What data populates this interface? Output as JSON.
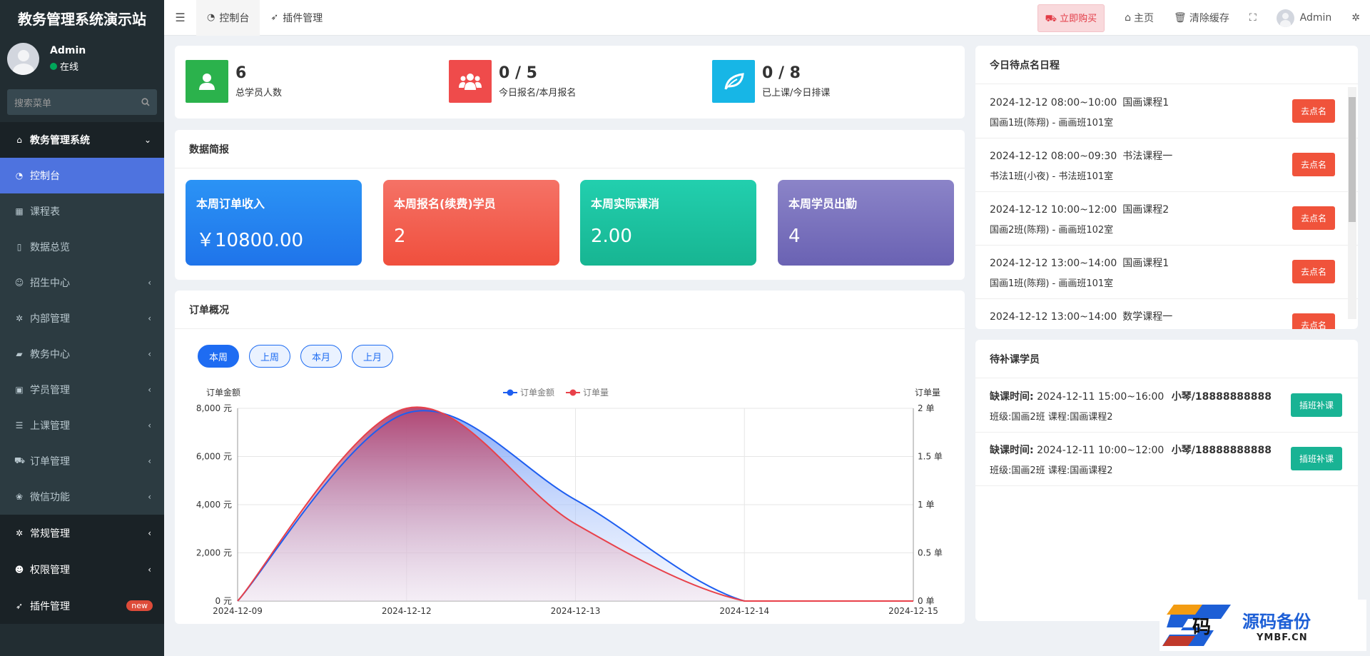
{
  "brand": {
    "title": "教务管理系统演示站"
  },
  "user": {
    "name": "Admin",
    "status": "在线"
  },
  "search": {
    "placeholder": "搜索菜单"
  },
  "sidebar": {
    "section_title": "教务管理系统",
    "items": [
      {
        "label": "控制台",
        "icon": "dashboard-icon"
      },
      {
        "label": "课程表",
        "icon": "calendar-icon"
      },
      {
        "label": "数据总览",
        "icon": "file-icon"
      },
      {
        "label": "招生中心",
        "icon": "user-icon"
      },
      {
        "label": "内部管理",
        "icon": "gear-icon"
      },
      {
        "label": "教务中心",
        "icon": "book-icon"
      },
      {
        "label": "学员管理",
        "icon": "idcard-icon"
      },
      {
        "label": "上课管理",
        "icon": "list-icon"
      },
      {
        "label": "订单管理",
        "icon": "cart-icon"
      },
      {
        "label": "微信功能",
        "icon": "wechat-icon"
      }
    ],
    "bottom": [
      {
        "label": "常规管理",
        "icon": "cogs-icon"
      },
      {
        "label": "权限管理",
        "icon": "group-icon"
      },
      {
        "label": "插件管理",
        "icon": "rocket-icon",
        "badge": "new"
      }
    ]
  },
  "navbar": {
    "tabs": [
      {
        "label": "控制台",
        "icon": "dashboard-icon"
      },
      {
        "label": "插件管理",
        "icon": "rocket-icon"
      }
    ],
    "buy": "立即购买",
    "home": "主页",
    "clear_cache": "清除缓存",
    "admin": "Admin"
  },
  "stats": [
    {
      "value": "6",
      "label": "总学员人数",
      "color": "#2bb24c",
      "icon": "user-icon"
    },
    {
      "value": "0 / 5",
      "label": "今日报名/本月报名",
      "color": "#ef4b4b",
      "icon": "users-icon"
    },
    {
      "value": "0 / 8",
      "label": "已上课/今日排课",
      "color": "#17b6e6",
      "icon": "leaf-icon"
    }
  ],
  "summary": {
    "title": "数据简报",
    "kpis": [
      {
        "title": "本周订单收入",
        "value": "￥10800.00"
      },
      {
        "title": "本周报名(续费)学员",
        "value": "2"
      },
      {
        "title": "本周实际课消",
        "value": "2.00"
      },
      {
        "title": "本周学员出勤",
        "value": "4"
      }
    ]
  },
  "orders": {
    "title": "订单概况",
    "filters": [
      "本周",
      "上周",
      "本月",
      "上月"
    ]
  },
  "chart_data": {
    "type": "area",
    "x": [
      "2024-12-09",
      "2024-12-12",
      "2024-12-13",
      "2024-12-14",
      "2024-12-15"
    ],
    "series": [
      {
        "name": "订单金额",
        "color": "#1e5ef0",
        "axis": "left",
        "values": [
          0,
          7800,
          4200,
          0,
          0
        ]
      },
      {
        "name": "订单量",
        "color": "#e8414a",
        "axis": "right",
        "values": [
          0,
          2,
          0.8,
          0,
          0
        ]
      }
    ],
    "ylabel_left": "订单金额",
    "ylabel_right": "订单量",
    "ylim_left": [
      0,
      8000
    ],
    "ylim_right": [
      0,
      2
    ],
    "yticks_left": [
      "0 元",
      "2,000 元",
      "4,000 元",
      "6,000 元",
      "8,000 元"
    ],
    "yticks_right": [
      "0 单",
      "0.5 单",
      "1 单",
      "1.5 单",
      "2 单"
    ],
    "legend": "top-center",
    "grid": true
  },
  "schedule": {
    "title": "今日待点名日程",
    "button": "去点名",
    "rows": [
      {
        "time": "2024-12-12 08:00~10:00",
        "course": "国画课程1",
        "detail": "国画1班(陈翔) - 画画班101室"
      },
      {
        "time": "2024-12-12 08:00~09:30",
        "course": "书法课程一",
        "detail": "书法1班(小夜) - 书法班101室"
      },
      {
        "time": "2024-12-12 10:00~12:00",
        "course": "国画课程2",
        "detail": "国画2班(陈翔) - 画画班102室"
      },
      {
        "time": "2024-12-12 13:00~14:00",
        "course": "国画课程1",
        "detail": "国画1班(陈翔) - 画画班101室"
      },
      {
        "time": "2024-12-12 13:00~14:00",
        "course": "数学课程一",
        "detail": ""
      }
    ]
  },
  "makeup": {
    "title": "待补课学员",
    "button": "插班补课",
    "rows": [
      {
        "time_label": "缺课时间:",
        "time": "2024-12-11 15:00~16:00",
        "student": "小琴/18888888888",
        "class_label": "班级:",
        "class": "国画2班",
        "course_label": "课程:",
        "course": "国画课程2"
      },
      {
        "time_label": "缺课时间:",
        "time": "2024-12-11 10:00~12:00",
        "student": "小琴/18888888888",
        "class_label": "班级:",
        "class": "国画2班",
        "course_label": "课程:",
        "course": "国画课程2"
      }
    ]
  },
  "logo": {
    "title": "源码备份",
    "sub": "YMBF.CN",
    "glyph": "码"
  }
}
